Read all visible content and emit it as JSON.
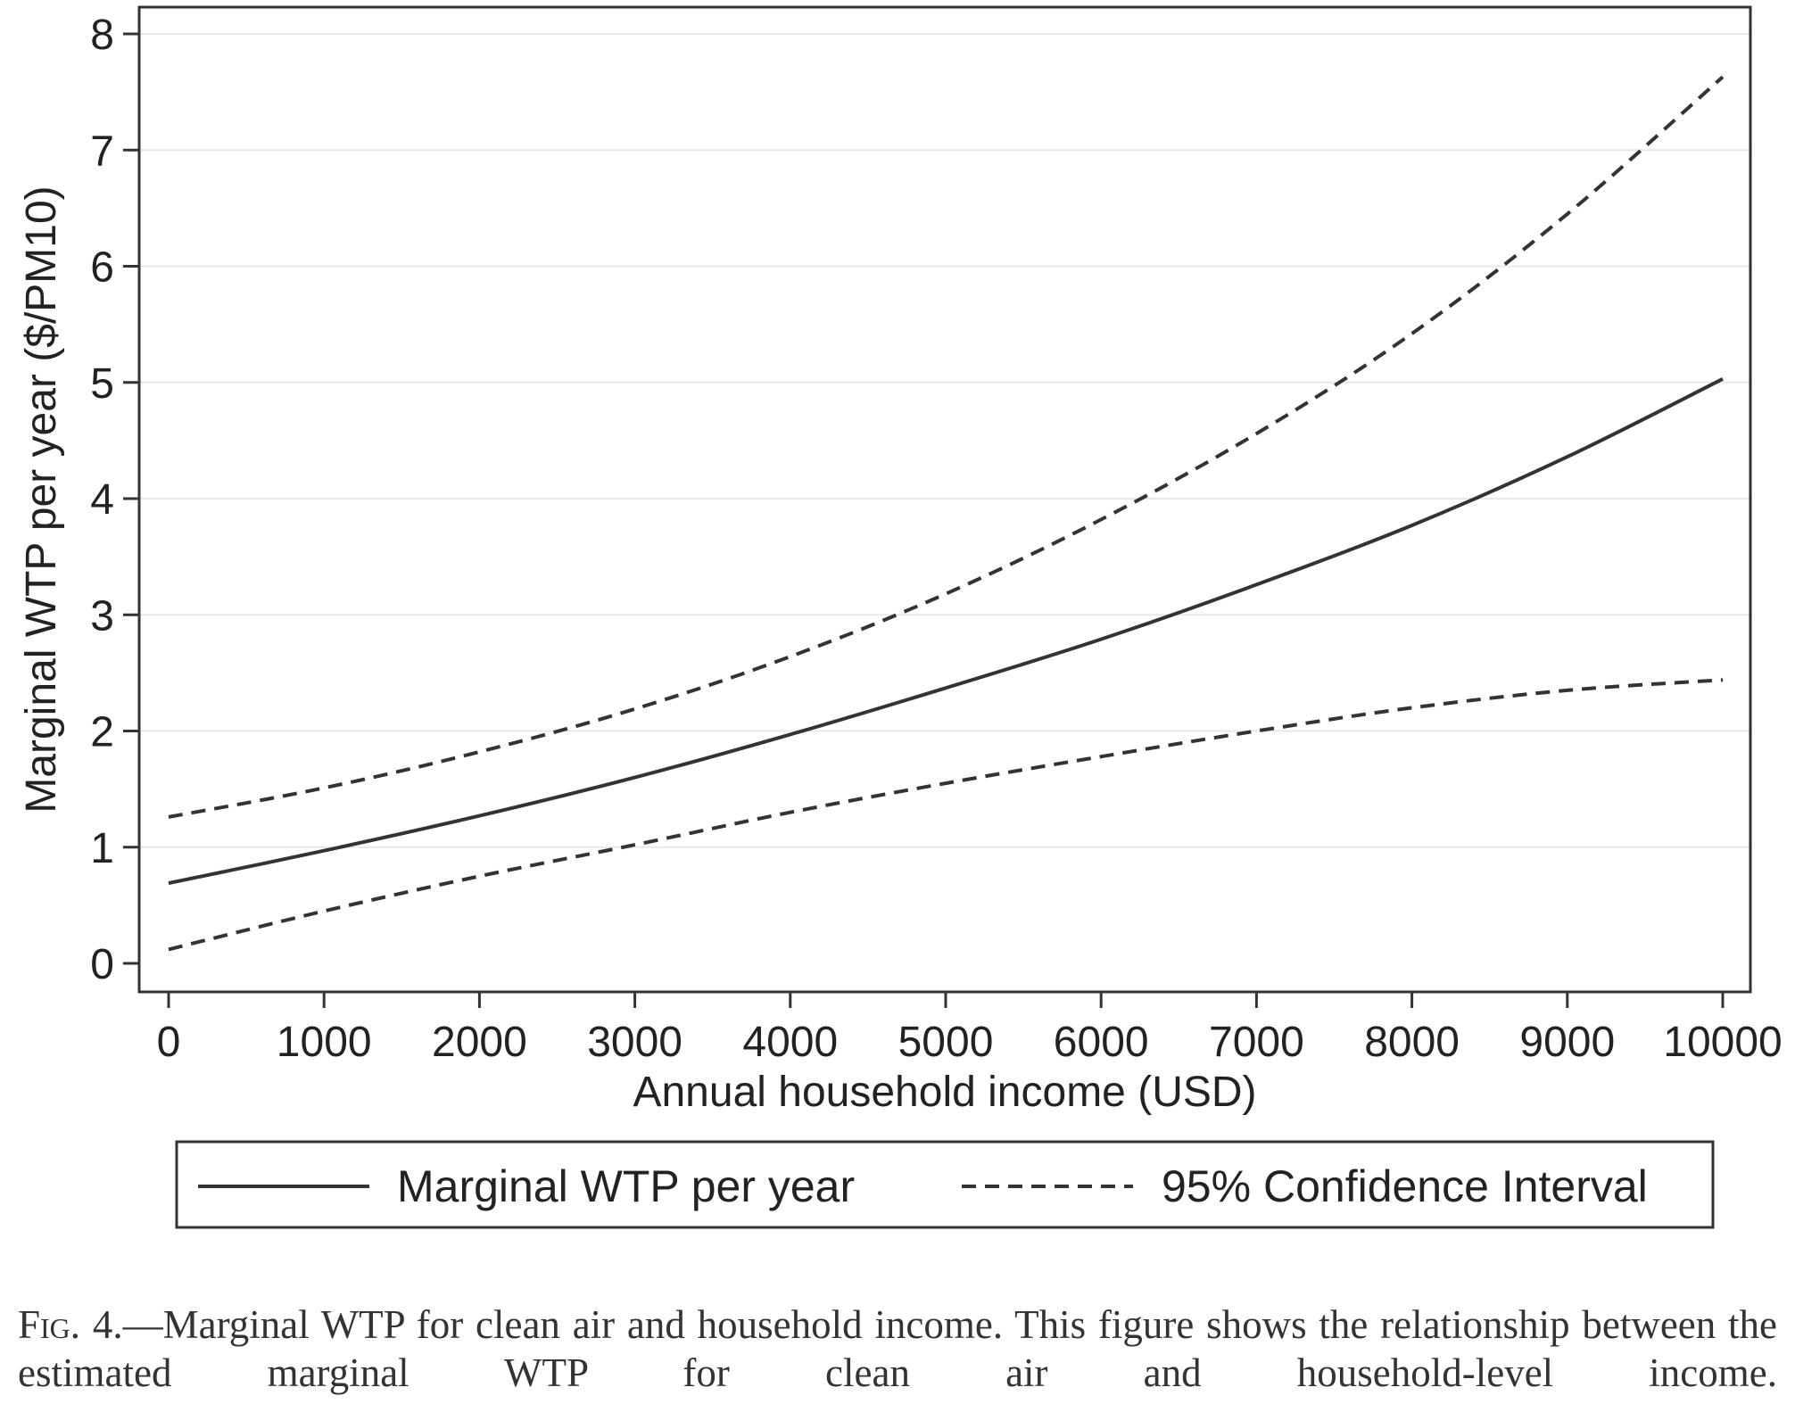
{
  "chart_data": {
    "type": "line",
    "title": "",
    "xlabel": "Annual household income (USD)",
    "ylabel": "Marginal WTP per year ($/PM10)",
    "xlim": [
      0,
      10000
    ],
    "ylim": [
      0,
      8
    ],
    "x_ticks": [
      0,
      1000,
      2000,
      3000,
      4000,
      5000,
      6000,
      7000,
      8000,
      9000,
      10000
    ],
    "y_ticks": [
      0,
      1,
      2,
      3,
      4,
      5,
      6,
      7,
      8
    ],
    "grid": "horizontal",
    "legend_position": "bottom",
    "x": [
      0,
      1000,
      2000,
      3000,
      4000,
      5000,
      6000,
      7000,
      8000,
      9000,
      10000
    ],
    "series": [
      {
        "name": "Marginal WTP per year",
        "style": "solid",
        "values": [
          0.69,
          0.97,
          1.27,
          1.6,
          1.97,
          2.37,
          2.79,
          3.26,
          3.77,
          4.36,
          5.03
        ]
      },
      {
        "name": "95% Confidence Interval",
        "style": "dashed",
        "values": [
          1.26,
          1.51,
          1.82,
          2.19,
          2.64,
          3.18,
          3.82,
          4.56,
          5.42,
          6.45,
          7.63
        ]
      },
      {
        "name": "",
        "legend_group": "95% Confidence Interval",
        "style": "dashed",
        "values": [
          0.12,
          0.45,
          0.75,
          1.02,
          1.3,
          1.55,
          1.78,
          2.0,
          2.2,
          2.35,
          2.44
        ]
      }
    ],
    "line_color": "#333333",
    "grid_color": "#e8e8e8"
  },
  "caption": {
    "label": "Fig. 4.",
    "text": "—Marginal WTP for clean air and household income. This figure shows the relationship between the estimated marginal WTP for clean air and household-level income."
  }
}
